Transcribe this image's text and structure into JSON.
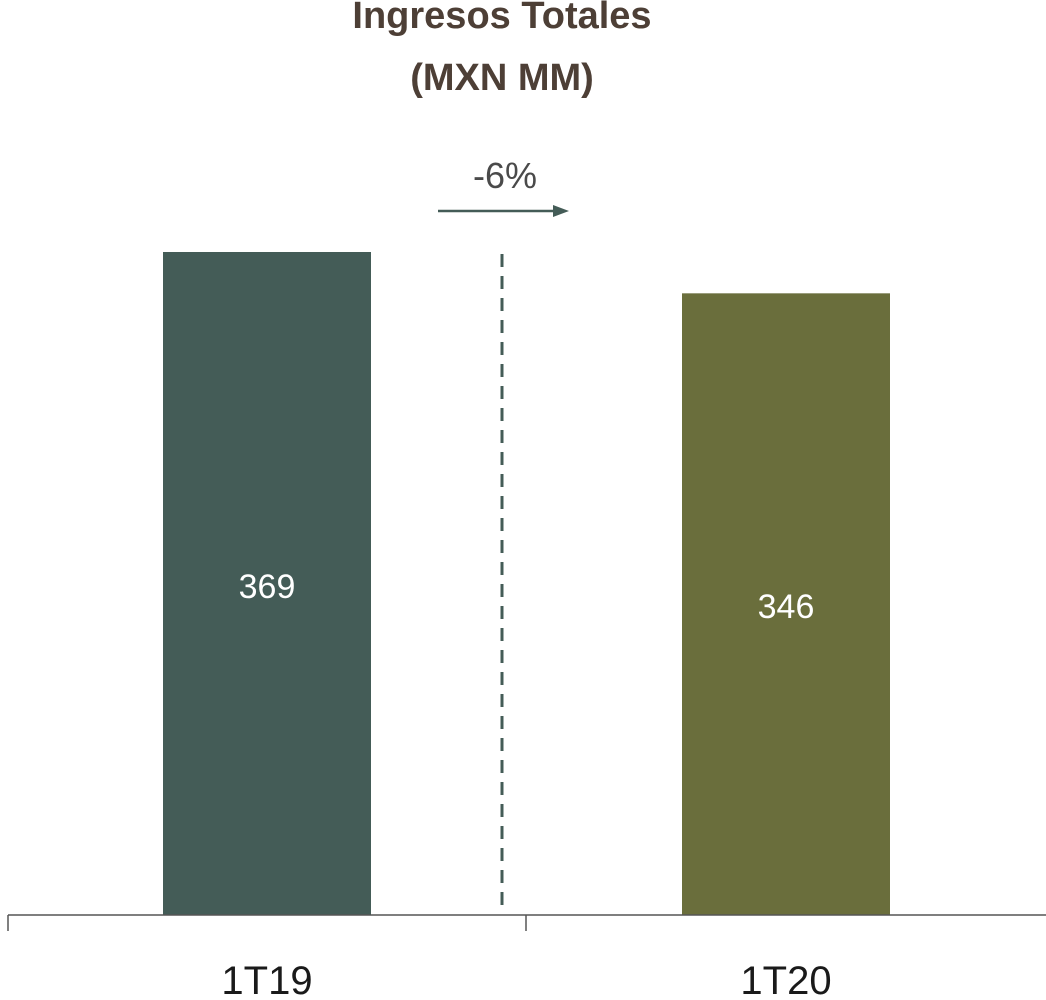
{
  "chart_data": {
    "type": "bar",
    "title_lines": [
      "Ingresos Totales",
      "(MXN MM)"
    ],
    "categories": [
      "1T19",
      "1T20"
    ],
    "values": [
      369,
      346
    ],
    "colors": [
      "#445c57",
      "#6a6e3c"
    ],
    "data_labels": [
      "369",
      "346"
    ],
    "change_label": "-6%",
    "change_arrow_color": "#445c57",
    "divider_color": "#445c57",
    "axis_color": "#555555",
    "xlabel": "",
    "ylabel": "",
    "grid": false,
    "legend": "none"
  }
}
